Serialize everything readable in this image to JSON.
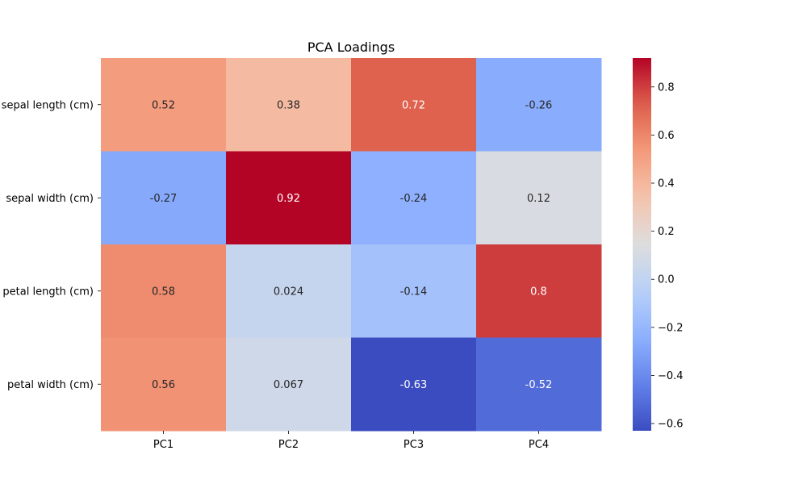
{
  "chart_data": {
    "type": "heatmap",
    "title": "PCA Loadings",
    "xlabel": "",
    "ylabel": "",
    "x_categories": [
      "PC1",
      "PC2",
      "PC3",
      "PC4"
    ],
    "y_categories": [
      "sepal length (cm)",
      "sepal width (cm)",
      "petal length (cm)",
      "petal width (cm)"
    ],
    "values": [
      [
        0.52,
        0.38,
        0.72,
        -0.26
      ],
      [
        -0.27,
        0.92,
        -0.24,
        0.12
      ],
      [
        0.58,
        0.024,
        -0.14,
        0.8
      ],
      [
        0.56,
        0.067,
        -0.63,
        -0.52
      ]
    ],
    "annotations": [
      [
        "0.52",
        "0.38",
        "0.72",
        "-0.26"
      ],
      [
        "-0.27",
        "0.92",
        "-0.24",
        "0.12"
      ],
      [
        "0.58",
        "0.024",
        "-0.14",
        "0.8"
      ],
      [
        "0.56",
        "0.067",
        "-0.63",
        "-0.52"
      ]
    ],
    "colormap": "coolwarm",
    "vmin": -0.63,
    "vmax": 0.92,
    "colorbar": {
      "ticks": [
        -0.6,
        -0.4,
        -0.2,
        0.0,
        0.2,
        0.4,
        0.6,
        0.8
      ],
      "tick_labels": [
        "−0.6",
        "−0.4",
        "−0.2",
        "0.0",
        "0.2",
        "0.4",
        "0.6",
        "0.8"
      ]
    },
    "legend": "colorbar-right",
    "grid": false
  }
}
